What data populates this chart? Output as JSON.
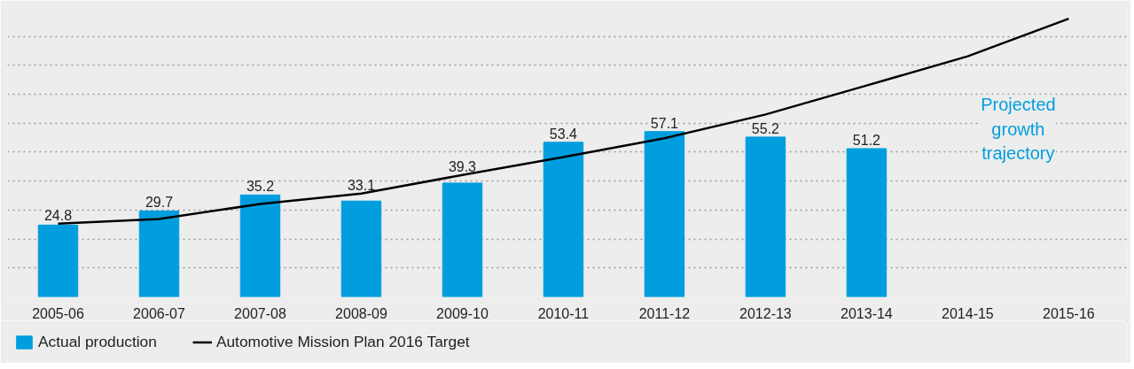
{
  "chart_data": {
    "type": "bar",
    "categories": [
      "2005-06",
      "2006-07",
      "2007-08",
      "2008-09",
      "2009-10",
      "2010-11",
      "2011-12",
      "2012-13",
      "2013-14",
      "2014-15",
      "2015-16"
    ],
    "series": [
      {
        "name": "Actual production",
        "color": "#009ddf",
        "values": [
          24.8,
          29.7,
          35.2,
          33.1,
          39.3,
          53.4,
          57.1,
          55.2,
          51.2,
          null,
          null
        ],
        "value_labels": [
          "24.8",
          "29.7",
          "35.2",
          "33.1",
          "39.3",
          "53.4",
          "57.1",
          "55.2",
          "51.2",
          null,
          null
        ]
      },
      {
        "name": "Automotive Mission Plan 2016 Target",
        "type": "line",
        "color": "#000000",
        "values": [
          25.3,
          26.9,
          32.1,
          35.7,
          42.1,
          48.3,
          54.8,
          63,
          73,
          83.1,
          96.1
        ]
      }
    ],
    "tick_labels": "x",
    "grid": "y",
    "legend": "bottom left",
    "line_style": "solid",
    "annotations": [
      "Projected growth trajectory"
    ]
  }
}
